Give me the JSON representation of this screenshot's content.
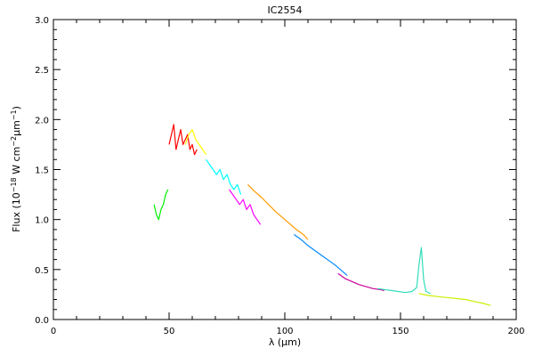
{
  "chart_data": {
    "type": "line",
    "title": "IC2554",
    "xlabel": "λ (μm)",
    "ylabel": {
      "prefix": "Flux (10",
      "exp1": "−18",
      "mid": " W cm",
      "exp2": "−2",
      "mid2": "μm",
      "exp3": "−1",
      "suffix": ")"
    },
    "xlim": [
      0,
      200
    ],
    "ylim": [
      0.0,
      3.0
    ],
    "x_ticks": [
      0,
      50,
      100,
      150,
      200
    ],
    "x_tick_labels": [
      "0",
      "50",
      "100",
      "150",
      "200"
    ],
    "y_ticks": [
      0.0,
      0.5,
      1.0,
      1.5,
      2.0,
      2.5,
      3.0
    ],
    "y_tick_labels": [
      "0.0",
      "0.5",
      "1.0",
      "1.5",
      "2.0",
      "2.5",
      "3.0"
    ],
    "grid": false,
    "series": [
      {
        "color": "#00ee00",
        "x": [
          43.5,
          44.5,
          45.5,
          46.5,
          47.5,
          48.5,
          49.5
        ],
        "y": [
          1.15,
          1.05,
          1.0,
          1.1,
          1.15,
          1.25,
          1.3
        ]
      },
      {
        "color": "#ff0000",
        "x": [
          50.0,
          51.0,
          52.0,
          53.0,
          54.0,
          55.0,
          56.0,
          57.0,
          58.0,
          59.0,
          60.0,
          61.0,
          62.0
        ],
        "y": [
          1.75,
          1.85,
          1.95,
          1.7,
          1.8,
          1.9,
          1.75,
          1.8,
          1.85,
          1.7,
          1.75,
          1.65,
          1.7
        ]
      },
      {
        "color": "#ffff00",
        "x": [
          57.0,
          58.5,
          60.0,
          61.5,
          63.0,
          64.5,
          66.0
        ],
        "y": [
          1.75,
          1.85,
          1.9,
          1.8,
          1.75,
          1.7,
          1.65
        ]
      },
      {
        "color": "#00ffff",
        "x": [
          66.0,
          67.5,
          69.0,
          70.5,
          72.0,
          73.5,
          75.0,
          76.5,
          78.0,
          79.5,
          81.0
        ],
        "y": [
          1.6,
          1.55,
          1.5,
          1.45,
          1.5,
          1.4,
          1.45,
          1.35,
          1.3,
          1.35,
          1.25
        ]
      },
      {
        "color": "#ff00ff",
        "x": [
          76.0,
          77.5,
          79.0,
          80.5,
          82.0,
          83.5,
          85.0,
          86.5,
          88.0,
          89.5
        ],
        "y": [
          1.3,
          1.25,
          1.2,
          1.15,
          1.2,
          1.1,
          1.15,
          1.05,
          1.0,
          0.95
        ]
      },
      {
        "color": "#ff9900",
        "x": [
          84.0,
          87.0,
          90.0,
          93.0,
          96.0,
          99.0,
          102.0,
          105.0,
          108.0,
          110.0
        ],
        "y": [
          1.35,
          1.28,
          1.22,
          1.15,
          1.08,
          1.02,
          0.96,
          0.9,
          0.85,
          0.8
        ]
      },
      {
        "color": "#0088ff",
        "x": [
          104.0,
          107.0,
          110.0,
          113.0,
          116.0,
          119.0,
          122.0,
          125.0,
          127.0
        ],
        "y": [
          0.85,
          0.8,
          0.74,
          0.69,
          0.64,
          0.59,
          0.54,
          0.48,
          0.44
        ]
      },
      {
        "color": "#cc0099",
        "x": [
          123.0,
          126.0,
          129.0,
          132.0,
          135.0,
          138.0,
          141.0,
          143.0
        ],
        "y": [
          0.46,
          0.41,
          0.38,
          0.35,
          0.33,
          0.31,
          0.3,
          0.29
        ]
      },
      {
        "color": "#33ddbb",
        "x": [
          140.0,
          143.0,
          146.0,
          149.0,
          152.0,
          155.0,
          157.0,
          158.0,
          159.0,
          160.0,
          161.0,
          163.0
        ],
        "y": [
          0.31,
          0.3,
          0.29,
          0.28,
          0.27,
          0.28,
          0.32,
          0.55,
          0.72,
          0.4,
          0.28,
          0.26
        ]
      },
      {
        "color": "#ccee00",
        "x": [
          158.0,
          162.0,
          166.0,
          170.0,
          174.0,
          178.0,
          182.0,
          186.0,
          189.0
        ],
        "y": [
          0.26,
          0.24,
          0.23,
          0.22,
          0.21,
          0.2,
          0.18,
          0.16,
          0.14
        ]
      }
    ]
  }
}
